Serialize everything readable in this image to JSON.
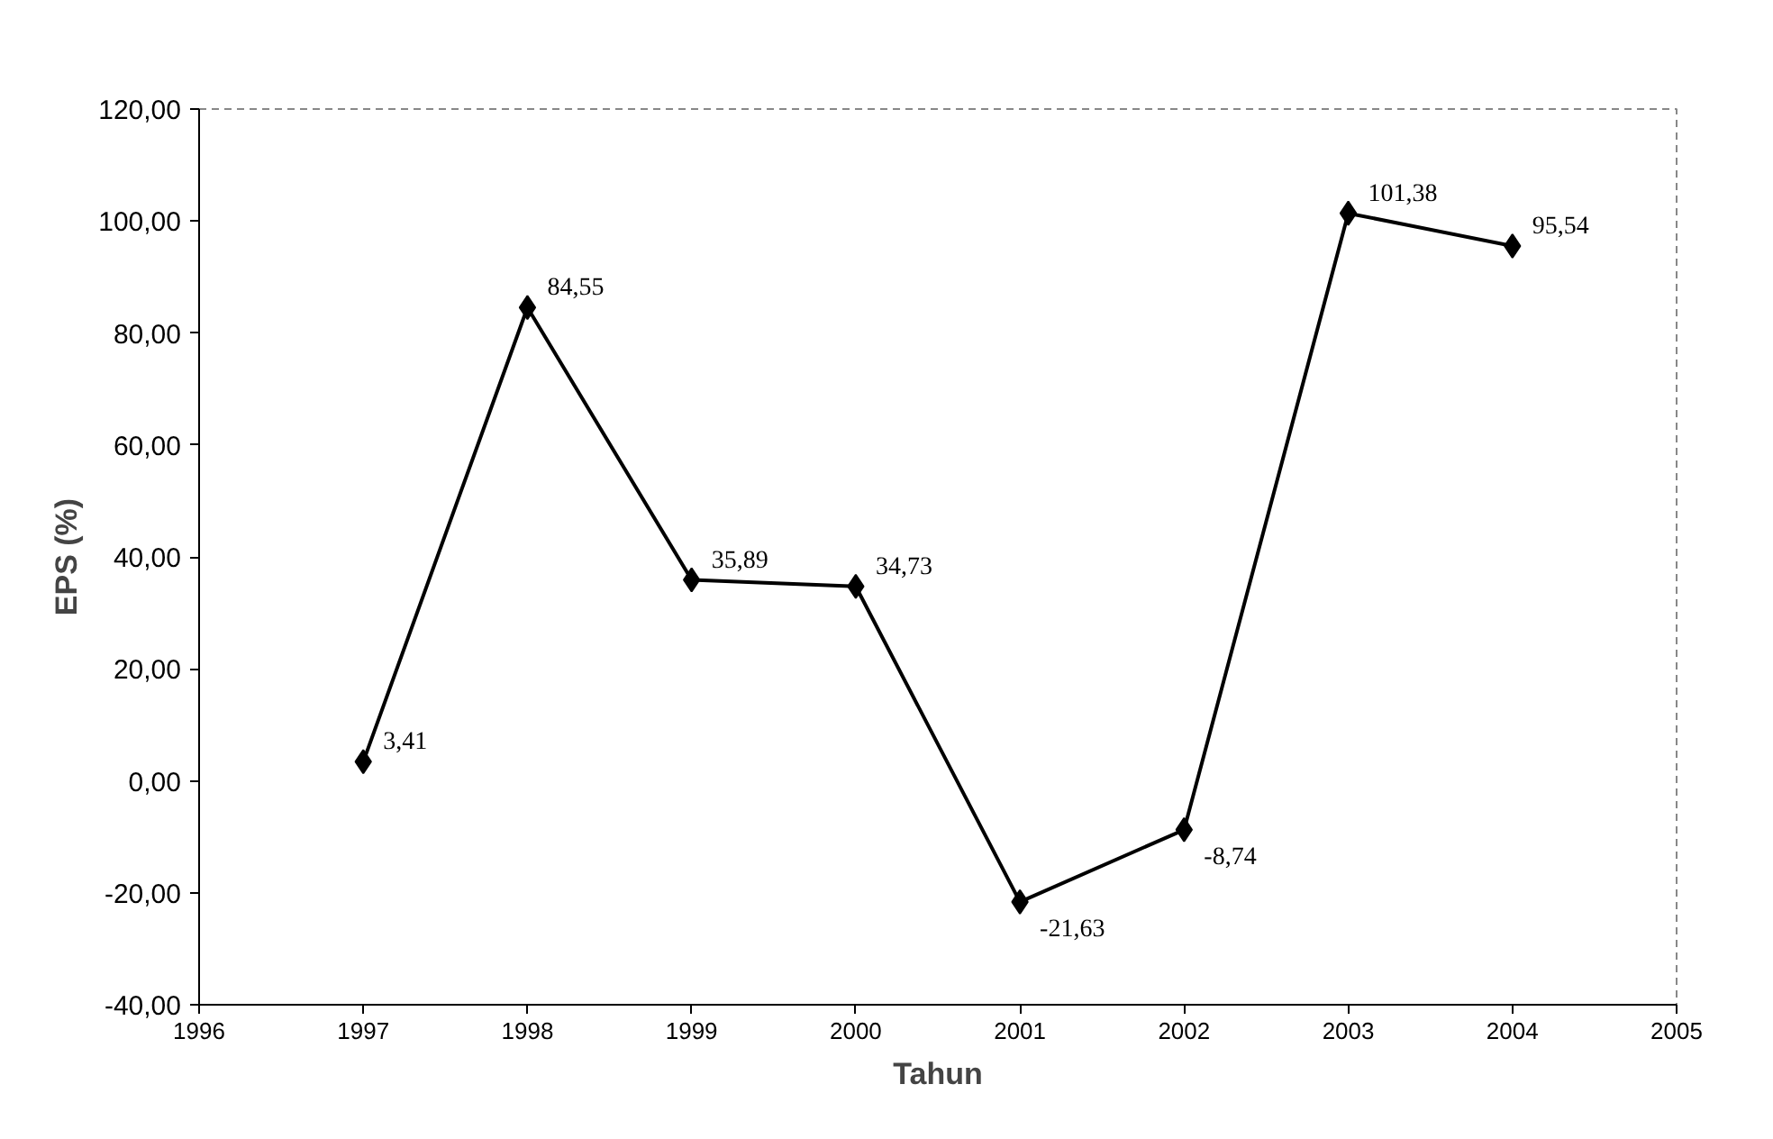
{
  "chart_data": {
    "type": "line",
    "xlabel": "Tahun",
    "ylabel": "EPS (%)",
    "x": [
      1997,
      1998,
      1999,
      2000,
      2001,
      2002,
      2003,
      2004
    ],
    "series": [
      {
        "color": "#000000",
        "values": [
          3.41,
          84.55,
          35.89,
          34.73,
          -21.63,
          -8.74,
          101.38,
          95.54
        ],
        "value_labels": [
          "3,41",
          "84,55",
          "35,89",
          "34,73",
          "-21,63",
          "-8,74",
          "101,38",
          "95,54"
        ]
      }
    ],
    "xlim": [
      1996,
      2005
    ],
    "ylim": [
      -40,
      120
    ],
    "xticks": [
      1996,
      1997,
      1998,
      1999,
      2000,
      2001,
      2002,
      2003,
      2004,
      2005
    ],
    "yticks": [
      {
        "value": -40,
        "label": "-40,00"
      },
      {
        "value": -20,
        "label": "-20,00"
      },
      {
        "value": 0,
        "label": "0,00"
      },
      {
        "value": 20,
        "label": "20,00"
      },
      {
        "value": 40,
        "label": "40,00"
      },
      {
        "value": 60,
        "label": "60,00"
      },
      {
        "value": 80,
        "label": "80,00"
      },
      {
        "value": 100,
        "label": "100,00"
      },
      {
        "value": 120,
        "label": "120,00"
      }
    ],
    "grid": false,
    "marker": "diamond",
    "line_style": "solid"
  }
}
